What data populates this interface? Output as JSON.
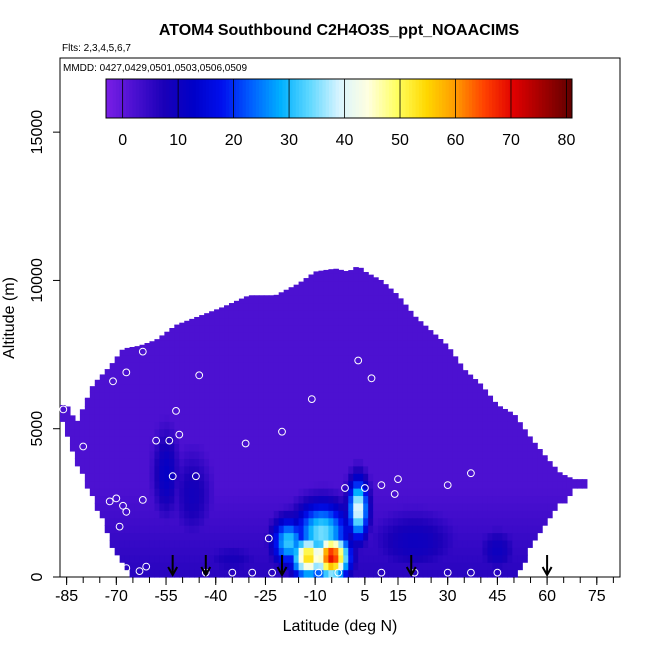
{
  "chart_data": {
    "type": "heatmap",
    "title": "ATOM4 Southbound C2H4O3S_ppt_NOAACIMS",
    "flights_note": "Flts: 2,3,4,5,6,7",
    "dates_note": "MMDD: 0427,0429,0501,0503,0506,0509",
    "xlabel": "Latitude (deg N)",
    "ylabel": "Altitude (m)",
    "xlim": [
      -87,
      82
    ],
    "ylim": [
      0,
      17500
    ],
    "x_ticks": [
      -85,
      -70,
      -55,
      -40,
      -25,
      -10,
      5,
      15,
      30,
      45,
      60,
      75
    ],
    "x_tick_labels": [
      "-85",
      "-70",
      "-55",
      "-40",
      "-25",
      "-10",
      "5",
      "15",
      "30",
      "45",
      "60",
      "75"
    ],
    "y_ticks": [
      0,
      5000,
      10000,
      15000
    ],
    "y_tick_labels": [
      "0",
      "5000",
      "10000",
      "15000"
    ],
    "colorbar": {
      "range": [
        -3,
        81
      ],
      "ticks": [
        0,
        10,
        20,
        30,
        40,
        50,
        60,
        70,
        80
      ],
      "tick_labels": [
        "0",
        "10",
        "20",
        "30",
        "40",
        "50",
        "60",
        "70",
        "80"
      ],
      "colors": [
        "#7a1fe6",
        "#4a10d0",
        "#1a00b8",
        "#0000c8",
        "#0010ee",
        "#0060ff",
        "#00b0ff",
        "#60d8ff",
        "#d8f4ff",
        "#ffffe0",
        "#ffff60",
        "#ffd800",
        "#ff9a00",
        "#ff4000",
        "#e00000",
        "#a00000",
        "#600000"
      ]
    },
    "envelope_top": [
      [
        -87,
        5800
      ],
      [
        -85,
        5800
      ],
      [
        -82,
        5200
      ],
      [
        -77,
        6500
      ],
      [
        -72,
        7100
      ],
      [
        -68,
        7700
      ],
      [
        -63,
        7800
      ],
      [
        -58,
        8000
      ],
      [
        -52,
        8500
      ],
      [
        -45,
        8800
      ],
      [
        -38,
        9100
      ],
      [
        -30,
        9500
      ],
      [
        -22,
        9500
      ],
      [
        -15,
        9900
      ],
      [
        -10,
        10300
      ],
      [
        -4,
        10400
      ],
      [
        0,
        10300
      ],
      [
        3,
        10500
      ],
      [
        5,
        10300
      ],
      [
        10,
        10000
      ],
      [
        15,
        9500
      ],
      [
        20,
        8800
      ],
      [
        25,
        8300
      ],
      [
        30,
        7800
      ],
      [
        35,
        7000
      ],
      [
        40,
        6500
      ],
      [
        45,
        5800
      ],
      [
        50,
        5500
      ],
      [
        55,
        4700
      ],
      [
        60,
        4000
      ],
      [
        64,
        3500
      ],
      [
        68,
        3300
      ],
      [
        72,
        3300
      ]
    ],
    "envelope_bottom": [
      [
        -87,
        5600
      ],
      [
        -84,
        4500
      ],
      [
        -80,
        3500
      ],
      [
        -77,
        2700
      ],
      [
        -74,
        2000
      ],
      [
        -71,
        1000
      ],
      [
        -67,
        400
      ],
      [
        -63,
        0
      ],
      [
        50,
        0
      ],
      [
        53,
        600
      ],
      [
        56,
        1400
      ],
      [
        60,
        2000
      ],
      [
        64,
        2600
      ],
      [
        68,
        3000
      ],
      [
        72,
        3300
      ]
    ],
    "background_value": 2,
    "anomalies": [
      {
        "lat": -5,
        "alt": 700,
        "value": 70,
        "sx": 5,
        "sy": 700
      },
      {
        "lat": -12,
        "alt": 700,
        "value": 55,
        "sx": 5,
        "sy": 700
      },
      {
        "lat": 3,
        "alt": 2300,
        "value": 42,
        "sx": 3,
        "sy": 1000
      },
      {
        "lat": -18,
        "alt": 1200,
        "value": 32,
        "sx": 5,
        "sy": 800
      },
      {
        "lat": -8,
        "alt": 1500,
        "value": 35,
        "sx": 8,
        "sy": 1000
      },
      {
        "lat": -55,
        "alt": 3500,
        "value": 12,
        "sx": 4,
        "sy": 1500
      },
      {
        "lat": -47,
        "alt": 2800,
        "value": 9,
        "sx": 6,
        "sy": 1500
      },
      {
        "lat": 20,
        "alt": 1200,
        "value": 10,
        "sx": 14,
        "sy": 1100
      },
      {
        "lat": 45,
        "alt": 900,
        "value": 10,
        "sx": 6,
        "sy": 800
      },
      {
        "lat": -35,
        "alt": 600,
        "value": 8,
        "sx": 10,
        "sy": 600
      }
    ],
    "samples": [
      [
        -86,
        5650
      ],
      [
        -80,
        4400
      ],
      [
        -72,
        2550
      ],
      [
        -70,
        2650
      ],
      [
        -68,
        2400
      ],
      [
        -69,
        1700
      ],
      [
        -67,
        2200
      ],
      [
        -62,
        2600
      ],
      [
        -67,
        6900
      ],
      [
        -71,
        6600
      ],
      [
        -62,
        7600
      ],
      [
        -52,
        5600
      ],
      [
        -51,
        4800
      ],
      [
        -54,
        4600
      ],
      [
        -58,
        4600
      ],
      [
        -53,
        3400
      ],
      [
        -46,
        3400
      ],
      [
        -45,
        6800
      ],
      [
        -31,
        4500
      ],
      [
        -20,
        4900
      ],
      [
        -11,
        6000
      ],
      [
        3,
        7300
      ],
      [
        7,
        6700
      ],
      [
        -24,
        1300
      ],
      [
        -1,
        3000
      ],
      [
        5,
        3000
      ],
      [
        10,
        3100
      ],
      [
        14,
        2800
      ],
      [
        15,
        3300
      ],
      [
        30,
        3100
      ],
      [
        37,
        3500
      ],
      [
        72,
        3650
      ],
      [
        -72,
        200
      ],
      [
        -70,
        350
      ],
      [
        -67,
        300
      ],
      [
        -63,
        200
      ],
      [
        -61,
        350
      ],
      [
        -43,
        150
      ],
      [
        -35,
        150
      ],
      [
        -29,
        150
      ],
      [
        -23,
        150
      ],
      [
        -9,
        150
      ],
      [
        -3,
        150
      ],
      [
        10,
        150
      ],
      [
        20,
        150
      ],
      [
        30,
        150
      ],
      [
        37,
        150
      ],
      [
        45,
        150
      ]
    ],
    "arrows_lat": [
      -53,
      -43,
      -20,
      19,
      60
    ]
  }
}
